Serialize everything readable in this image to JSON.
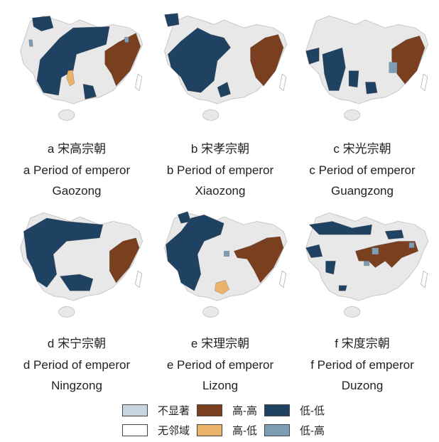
{
  "colors": {
    "not_significant": "#c7d5e0",
    "no_neighbor": "#ffffff",
    "high_high": "#7a3f1e",
    "high_low": "#eab26b",
    "low_low": "#1f4263",
    "low_high": "#7c9db3",
    "base": "#e8e8e8"
  },
  "panels": [
    {
      "id": "a",
      "zh": "a 宋高宗朝",
      "en1": "a Period of emperor",
      "en2": "Gaozong"
    },
    {
      "id": "b",
      "zh": "b 宋孝宗朝",
      "en1": "b Period of emperor",
      "en2": "Xiaozong"
    },
    {
      "id": "c",
      "zh": "c 宋光宗朝",
      "en1": "c Period of emperor",
      "en2": "Guangzong"
    },
    {
      "id": "d",
      "zh": "d 宋宁宗朝",
      "en1": "d Period of emperor",
      "en2": "Ningzong"
    },
    {
      "id": "e",
      "zh": "e 宋理宗朝",
      "en1": "e Period of emperor",
      "en2": "Lizong"
    },
    {
      "id": "f",
      "zh": "f 宋度宗朝",
      "en1": "f Period of emperor",
      "en2": "Duzong"
    }
  ],
  "legend": [
    {
      "label": "不显著",
      "color_key": "not_significant"
    },
    {
      "label": "高-高",
      "color_key": "high_high"
    },
    {
      "label": "低-低",
      "color_key": "low_low"
    },
    {
      "label": "无邻域",
      "color_key": "no_neighbor"
    },
    {
      "label": "高-低",
      "color_key": "high_low"
    },
    {
      "label": "低-高",
      "color_key": "low_high"
    }
  ]
}
